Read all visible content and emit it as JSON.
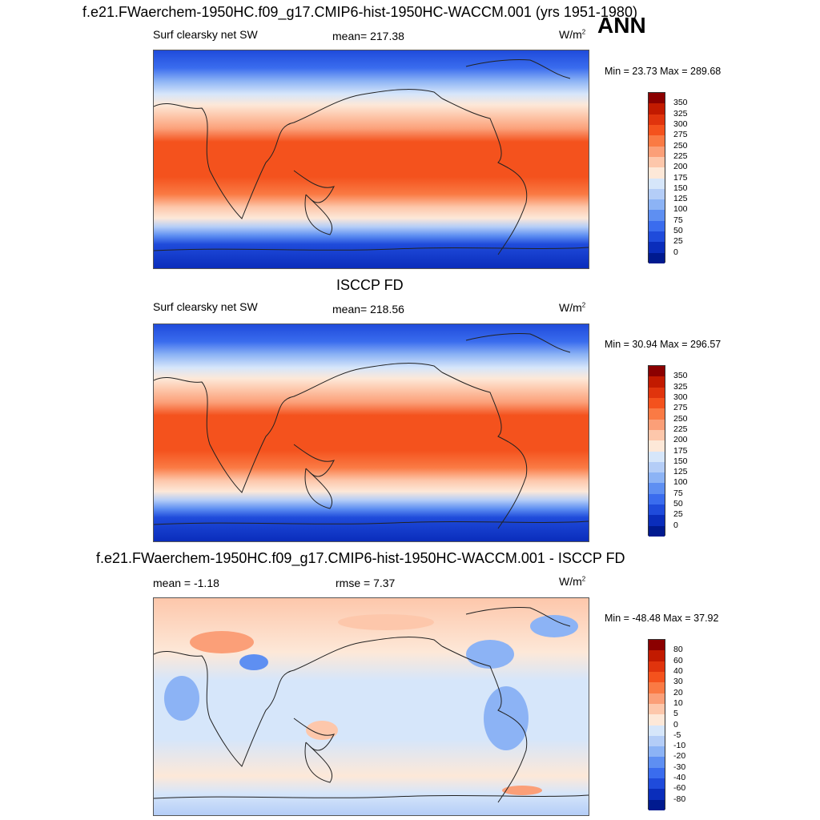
{
  "header": {
    "title": "f.e21.FWaerchem-1950HC.f09_g17.CMIP6-hist-1950HC-WACCM.001 (yrs 1951-1980)",
    "season": "ANN"
  },
  "panels": [
    {
      "id": "model",
      "title": "",
      "left_label": "Surf clearsky net SW",
      "center_label": "mean= 217.38",
      "units_base": "W/m",
      "units_exp": "2",
      "minmax": "Min =  23.73 Max = 289.68",
      "colorbar": {
        "labels": [
          "350",
          "325",
          "300",
          "275",
          "250",
          "225",
          "200",
          "175",
          "150",
          "125",
          "100",
          "75",
          "50",
          "25",
          "0"
        ],
        "colors": [
          "#8b0000",
          "#c21a00",
          "#e0340d",
          "#f4521d",
          "#fa7a44",
          "#fb9f78",
          "#fdc7ab",
          "#fde8d8",
          "#d6e6fa",
          "#b4cdf7",
          "#8cb3f5",
          "#5e8ff2",
          "#3a6cee",
          "#1f4bdb",
          "#0a2dbb",
          "#001a8f"
        ]
      }
    },
    {
      "id": "obs",
      "title": "ISCCP FD",
      "left_label": "Surf clearsky net SW",
      "center_label": "mean= 218.56",
      "units_base": "W/m",
      "units_exp": "2",
      "minmax": "Min =  30.94 Max = 296.57",
      "colorbar": {
        "labels": [
          "350",
          "325",
          "300",
          "275",
          "250",
          "225",
          "200",
          "175",
          "150",
          "125",
          "100",
          "75",
          "50",
          "25",
          "0"
        ],
        "colors": [
          "#8b0000",
          "#c21a00",
          "#e0340d",
          "#f4521d",
          "#fa7a44",
          "#fb9f78",
          "#fdc7ab",
          "#fde8d8",
          "#d6e6fa",
          "#b4cdf7",
          "#8cb3f5",
          "#5e8ff2",
          "#3a6cee",
          "#1f4bdb",
          "#0a2dbb",
          "#001a8f"
        ]
      }
    },
    {
      "id": "diff",
      "title": "f.e21.FWaerchem-1950HC.f09_g17.CMIP6-hist-1950HC-WACCM.001 - ISCCP FD",
      "left_label": "mean =  -1.18",
      "center_label": "rmse =   7.37",
      "units_base": "W/m",
      "units_exp": "2",
      "minmax": "Min = -48.48 Max =  37.92",
      "colorbar": {
        "labels": [
          "80",
          "60",
          "40",
          "30",
          "20",
          "10",
          "5",
          "0",
          "-5",
          "-10",
          "-20",
          "-30",
          "-40",
          "-60",
          "-80"
        ],
        "colors": [
          "#8b0000",
          "#c21a00",
          "#e0340d",
          "#f4521d",
          "#fa7a44",
          "#fb9f78",
          "#fdc7ab",
          "#fde8d8",
          "#d6e6fa",
          "#b4cdf7",
          "#8cb3f5",
          "#5e8ff2",
          "#3a6cee",
          "#1f4bdb",
          "#0a2dbb",
          "#001a8f"
        ]
      }
    }
  ]
}
